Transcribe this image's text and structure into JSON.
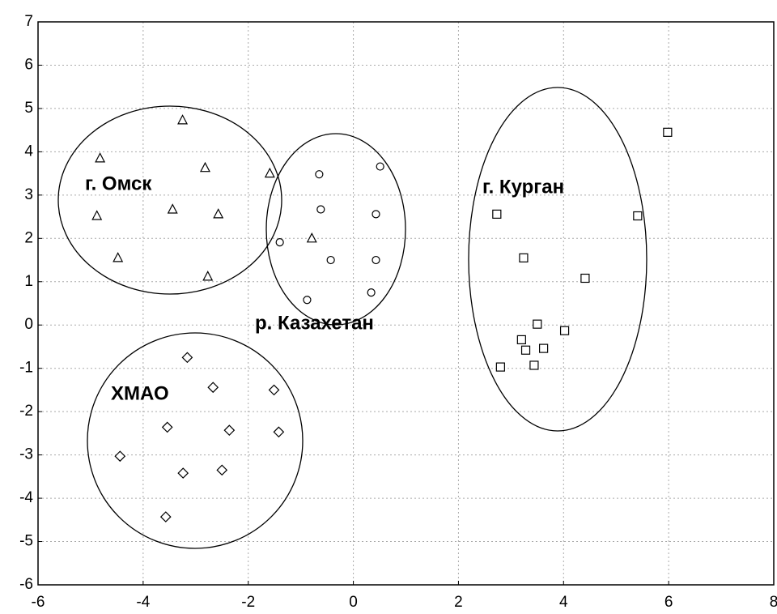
{
  "chart_data": {
    "type": "scatter",
    "xlim": [
      -6,
      8
    ],
    "xticks": [
      -6,
      -4,
      -2,
      0,
      2,
      4,
      6,
      8
    ],
    "ylim": [
      -6,
      7
    ],
    "yticks": [
      -6,
      -5,
      -4,
      -3,
      -2,
      -1,
      0,
      1,
      2,
      3,
      4,
      5,
      6,
      7
    ],
    "grid": true,
    "annotations": [
      "г. Омск",
      "р. Казахетан",
      "г. Курган",
      "ХМАО"
    ],
    "series": [
      {
        "marker": "triangle",
        "color": "#000000",
        "x": [
          -3.25,
          -4.82,
          -2.82,
          -1.59,
          -3.44,
          -2.57,
          -4.88,
          -0.79,
          -4.48,
          -2.77
        ],
        "y": [
          4.73,
          3.85,
          3.63,
          3.5,
          2.67,
          2.56,
          2.52,
          2.0,
          1.55,
          1.12
        ]
      },
      {
        "marker": "circle",
        "color": "#000000",
        "x": [
          -0.65,
          0.51,
          -0.62,
          0.43,
          -1.4,
          -0.43,
          0.43,
          -0.88,
          0.34
        ],
        "y": [
          3.48,
          3.66,
          2.67,
          2.56,
          1.91,
          1.5,
          1.5,
          0.58,
          0.75
        ]
      },
      {
        "marker": "square",
        "color": "#000000",
        "x": [
          5.98,
          2.73,
          5.41,
          3.24,
          4.41,
          3.5,
          4.02,
          3.2,
          3.28,
          3.62,
          3.44,
          2.8
        ],
        "y": [
          4.45,
          2.56,
          2.52,
          1.55,
          1.08,
          0.02,
          -0.13,
          -0.34,
          -0.58,
          -0.54,
          -0.93,
          -0.97
        ]
      },
      {
        "marker": "diamond",
        "color": "#000000",
        "x": [
          -3.16,
          -2.67,
          -1.51,
          -3.54,
          -2.36,
          -1.42,
          -4.44,
          -3.24,
          -2.5,
          -3.57
        ],
        "y": [
          -0.75,
          -1.44,
          -1.5,
          -2.36,
          -2.43,
          -2.47,
          -3.03,
          -3.42,
          -3.35,
          -4.43
        ]
      }
    ]
  }
}
